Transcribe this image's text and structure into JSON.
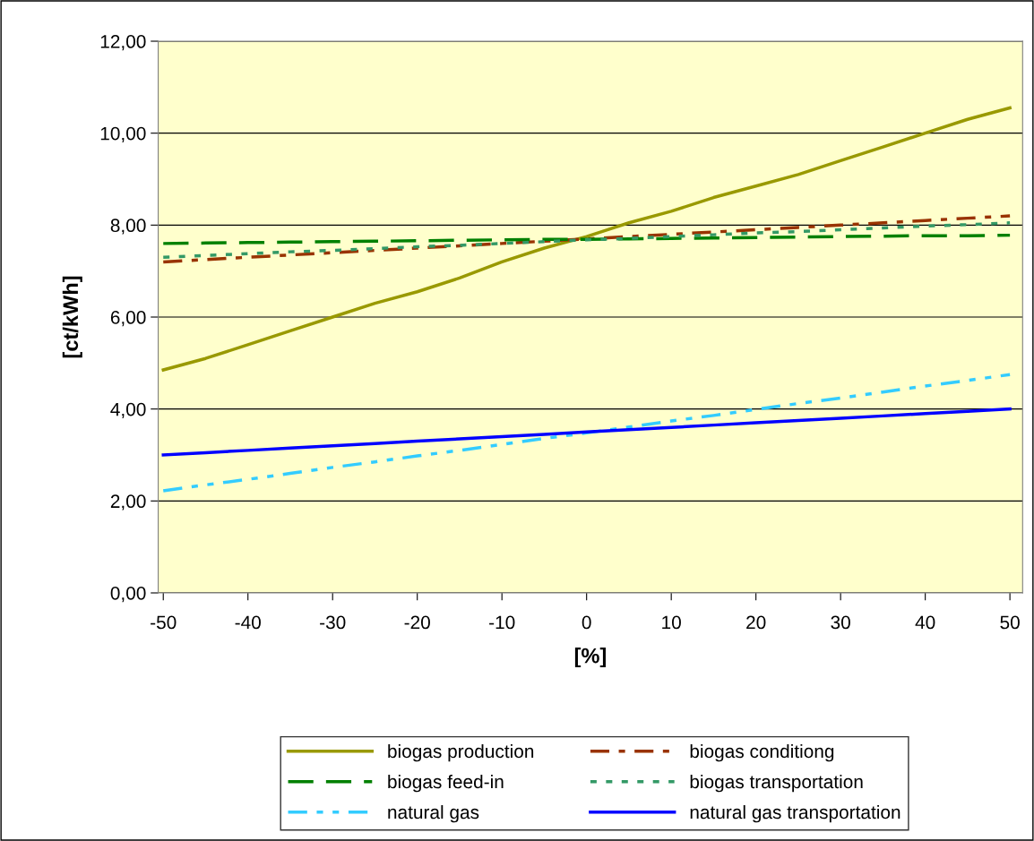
{
  "chart_data": {
    "type": "line",
    "xlabel": "[%]",
    "ylabel": "[ct/kWh]",
    "x": [
      -50,
      -45,
      -40,
      -35,
      -30,
      -25,
      -20,
      -15,
      -10,
      -5,
      0,
      5,
      10,
      15,
      20,
      25,
      30,
      35,
      40,
      45,
      50
    ],
    "xlim": [
      -50.6,
      51.5
    ],
    "xticks": [
      -50,
      -40,
      -30,
      -20,
      -10,
      0,
      10,
      20,
      30,
      40,
      50
    ],
    "ylim": [
      0,
      12
    ],
    "yticks": [
      {
        "value": 0,
        "label": "0,00"
      },
      {
        "value": 2,
        "label": "2,00"
      },
      {
        "value": 4,
        "label": "4,00"
      },
      {
        "value": 6,
        "label": "6,00"
      },
      {
        "value": 8,
        "label": "8,00"
      },
      {
        "value": 10,
        "label": "10,00"
      },
      {
        "value": 12,
        "label": "12,00"
      }
    ],
    "grid": "y",
    "legend": "bottom",
    "marker": "none",
    "series": [
      {
        "name": "biogas production",
        "color": "#999900",
        "line_style": "solid",
        "values": [
          4.85,
          5.1,
          5.4,
          5.7,
          6.0,
          6.3,
          6.55,
          6.85,
          7.2,
          7.5,
          7.75,
          8.05,
          8.3,
          8.6,
          8.85,
          9.1,
          9.4,
          9.7,
          10.0,
          10.3,
          10.55
        ]
      },
      {
        "name": "biogas conditiong",
        "color": "#993300",
        "line_style": "dashdot",
        "values": [
          7.2,
          7.25,
          7.3,
          7.35,
          7.4,
          7.45,
          7.5,
          7.55,
          7.6,
          7.65,
          7.7,
          7.75,
          7.8,
          7.85,
          7.9,
          7.95,
          8.0,
          8.05,
          8.1,
          8.15,
          8.2
        ]
      },
      {
        "name": "biogas feed-in",
        "color": "#008000",
        "line_style": "dashed",
        "values": [
          7.6,
          7.61,
          7.62,
          7.63,
          7.64,
          7.65,
          7.66,
          7.67,
          7.68,
          7.69,
          7.69,
          7.7,
          7.71,
          7.72,
          7.73,
          7.74,
          7.75,
          7.76,
          7.77,
          7.77,
          7.78
        ]
      },
      {
        "name": "biogas transportation",
        "color": "#339966",
        "line_style": "dotted",
        "values": [
          7.3,
          7.34,
          7.38,
          7.42,
          7.45,
          7.49,
          7.53,
          7.56,
          7.6,
          7.64,
          7.68,
          7.71,
          7.75,
          7.79,
          7.83,
          7.86,
          7.9,
          7.94,
          7.98,
          8.01,
          8.05
        ]
      },
      {
        "name": "natural gas",
        "color": "#33ccff",
        "line_style": "dashdotdot",
        "values": [
          2.22,
          2.35,
          2.47,
          2.6,
          2.73,
          2.85,
          2.98,
          3.1,
          3.23,
          3.36,
          3.48,
          3.61,
          3.74,
          3.86,
          3.99,
          4.12,
          4.24,
          4.37,
          4.5,
          4.62,
          4.75
        ]
      },
      {
        "name": "natural gas transportation",
        "color": "#0000ff",
        "line_style": "solid",
        "values": [
          3.0,
          3.05,
          3.1,
          3.15,
          3.2,
          3.25,
          3.3,
          3.35,
          3.4,
          3.45,
          3.5,
          3.55,
          3.6,
          3.65,
          3.7,
          3.75,
          3.8,
          3.85,
          3.9,
          3.95,
          4.0
        ]
      }
    ]
  }
}
